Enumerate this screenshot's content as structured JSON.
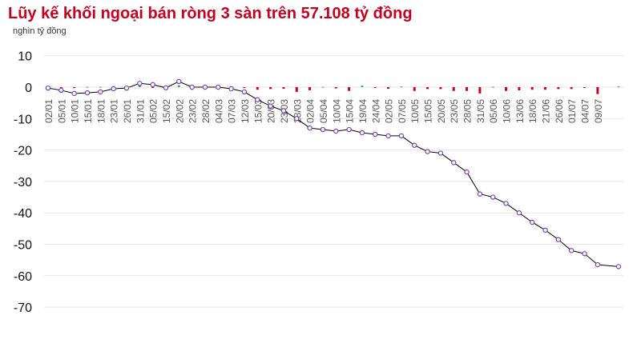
{
  "chart_data": {
    "type": "line",
    "title": "Lũy kế khối ngoại bán ròng 3 sàn trên 57.108 tỷ đồng",
    "ylabel": "nghìn tỷ đồng",
    "ylim": [
      -70,
      10
    ],
    "yticks": [
      10,
      0,
      -10,
      -20,
      -30,
      -40,
      -50,
      -60,
      -70
    ],
    "grid": true,
    "colors": {
      "line": "#000000",
      "marker": "#7b3fb5",
      "net_sell": "#d0021b",
      "net_buy": "#2db36b",
      "title": "#c8001e"
    },
    "categories": [
      "02/01",
      "05/01",
      "10/01",
      "15/01",
      "18/01",
      "23/01",
      "26/01",
      "31/01",
      "05/02",
      "15/02",
      "20/02",
      "23/02",
      "28/02",
      "04/03",
      "07/03",
      "12/03",
      "15/03",
      "20/03",
      "23/03",
      "28/03",
      "02/04",
      "05/04",
      "10/04",
      "15/04",
      "19/04",
      "24/04",
      "02/05",
      "07/05",
      "10/05",
      "15/05",
      "20/05",
      "23/05",
      "28/05",
      "31/05",
      "05/06",
      "10/06",
      "13/06",
      "18/06",
      "21/06",
      "26/06",
      "01/07",
      "04/07",
      "09/07",
      ""
    ],
    "series": [
      {
        "type": "line",
        "values": [
          -0.3,
          -1,
          -2,
          -1.8,
          -1.5,
          -0.5,
          -0.3,
          1.2,
          0.8,
          -0.2,
          1.8,
          0,
          0,
          0,
          -0.5,
          -1.5,
          -4,
          -6,
          -7.5,
          -10,
          -13,
          -13.5,
          -14,
          -13.5,
          -14.5,
          -15,
          -15.5,
          -15.5,
          -18.5,
          -20.5,
          -21,
          -24,
          -27,
          -34,
          -35,
          -37,
          -40,
          -43,
          -45.5,
          -48.5,
          -52,
          -53,
          -56.5,
          -57.1
        ]
      },
      {
        "type": "bar",
        "values": [
          -0.2,
          -0.3,
          -0.3,
          0.1,
          0.1,
          0.3,
          0.1,
          0.5,
          -0.2,
          -0.3,
          0.6,
          -0.8,
          -0.1,
          0.1,
          -0.2,
          -0.3,
          -0.8,
          -0.6,
          -0.5,
          -1.5,
          -1,
          0.1,
          -0.4,
          -1.2,
          0.5,
          -0.1,
          -0.5,
          0.2,
          -1.2,
          -0.6,
          -0.6,
          -1.2,
          -1.2,
          -2,
          0.1,
          -1.2,
          -1,
          -0.8,
          -0.8,
          -0.6,
          -0.6,
          -0.2,
          -2.2,
          0.2
        ]
      }
    ]
  }
}
